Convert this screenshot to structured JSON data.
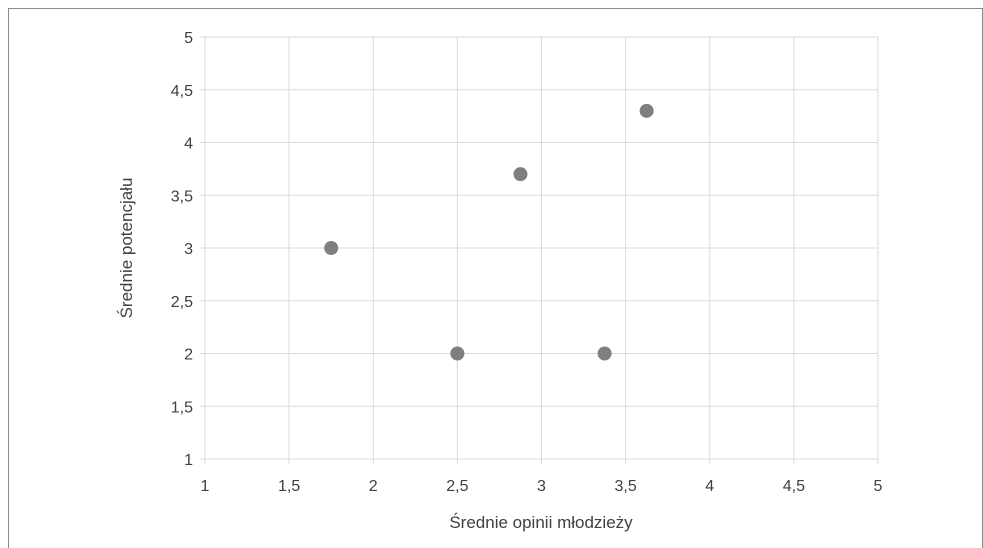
{
  "chart_data": {
    "type": "scatter",
    "title": "",
    "xlabel": "Średnie opinii młodzieży",
    "ylabel": "Średnie potencjału",
    "xlim": [
      1,
      5
    ],
    "ylim": [
      1,
      5
    ],
    "x_ticks": [
      "1",
      "1,5",
      "2",
      "2,5",
      "3",
      "3,5",
      "4",
      "4,5",
      "5"
    ],
    "y_ticks": [
      "1",
      "1,5",
      "2",
      "2,5",
      "3",
      "3,5",
      "4",
      "4,5",
      "5"
    ],
    "grid": true,
    "legend": "none",
    "point_color": "#7f7f80",
    "points": [
      {
        "x": 1.75,
        "y": 3.0
      },
      {
        "x": 2.5,
        "y": 2.0
      },
      {
        "x": 2.875,
        "y": 3.7
      },
      {
        "x": 3.375,
        "y": 2.0
      },
      {
        "x": 3.625,
        "y": 4.3
      }
    ]
  }
}
